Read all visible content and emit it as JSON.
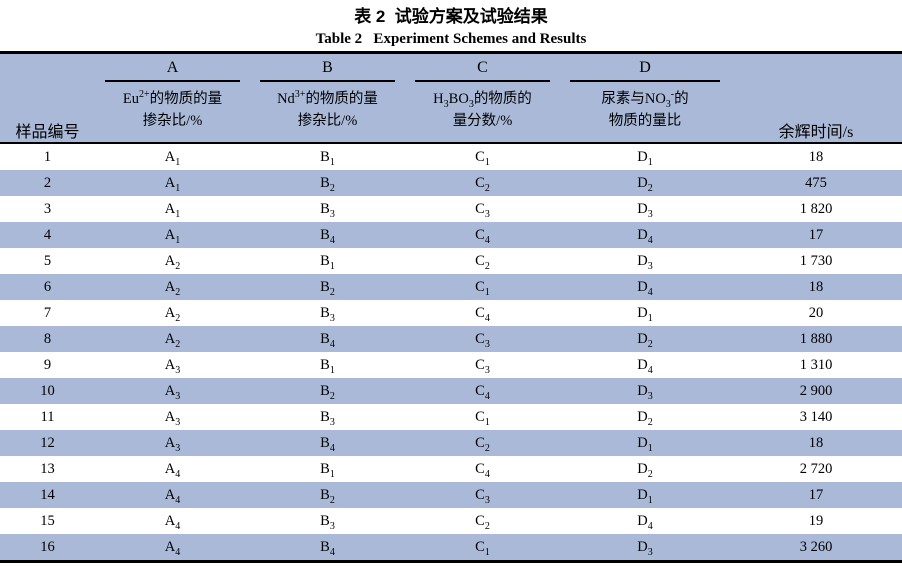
{
  "titles": {
    "cn": "表 2  试验方案及试验结果",
    "en": "Table 2   Experiment Schemes and Results"
  },
  "colors": {
    "row_highlight": "#a9b9d7",
    "rule": "#000000",
    "text": "#000000"
  },
  "table": {
    "sample_col_header": "样品编号",
    "time_col_header": "余辉时间/s",
    "factors": [
      {
        "letter": "A",
        "desc_parts": [
          {
            "t": "Eu"
          },
          {
            "sup": "2+"
          },
          {
            "t": "的物质的量"
          },
          {
            "br": true
          },
          {
            "t": "掺杂比/%"
          }
        ]
      },
      {
        "letter": "B",
        "desc_parts": [
          {
            "t": "Nd"
          },
          {
            "sup": "3+"
          },
          {
            "t": "的物质的量"
          },
          {
            "br": true
          },
          {
            "t": "掺杂比/%"
          }
        ]
      },
      {
        "letter": "C",
        "desc_parts": [
          {
            "t": "H"
          },
          {
            "sub": "3"
          },
          {
            "t": "BO"
          },
          {
            "sub": "3"
          },
          {
            "t": "的物质的"
          },
          {
            "br": true
          },
          {
            "t": "量分数/%"
          }
        ]
      },
      {
        "letter": "D",
        "desc_parts": [
          {
            "t": "尿素与NO"
          },
          {
            "sub": "3"
          },
          {
            "sup": "-"
          },
          {
            "t": "的"
          },
          {
            "br": true
          },
          {
            "t": "物质的量比"
          }
        ]
      }
    ],
    "rows": [
      [
        "1",
        "A1",
        "B1",
        "C1",
        "D1",
        "18"
      ],
      [
        "2",
        "A1",
        "B2",
        "C2",
        "D2",
        "475"
      ],
      [
        "3",
        "A1",
        "B3",
        "C3",
        "D3",
        "1 820"
      ],
      [
        "4",
        "A1",
        "B4",
        "C4",
        "D4",
        "17"
      ],
      [
        "5",
        "A2",
        "B1",
        "C2",
        "D3",
        "1 730"
      ],
      [
        "6",
        "A2",
        "B2",
        "C1",
        "D4",
        "18"
      ],
      [
        "7",
        "A2",
        "B3",
        "C4",
        "D1",
        "20"
      ],
      [
        "8",
        "A2",
        "B4",
        "C3",
        "D2",
        "1 880"
      ],
      [
        "9",
        "A3",
        "B1",
        "C3",
        "D4",
        "1 310"
      ],
      [
        "10",
        "A3",
        "B2",
        "C4",
        "D3",
        "2 900"
      ],
      [
        "11",
        "A3",
        "B3",
        "C1",
        "D2",
        "3 140"
      ],
      [
        "12",
        "A3",
        "B4",
        "C2",
        "D1",
        "18"
      ],
      [
        "13",
        "A4",
        "B1",
        "C4",
        "D2",
        "2 720"
      ],
      [
        "14",
        "A4",
        "B2",
        "C3",
        "D1",
        "17"
      ],
      [
        "15",
        "A4",
        "B3",
        "C2",
        "D4",
        "19"
      ],
      [
        "16",
        "A4",
        "B4",
        "C1",
        "D3",
        "3 260"
      ]
    ],
    "cell_names": [
      "sample-number-cell",
      "factor-a-cell",
      "factor-b-cell",
      "factor-c-cell",
      "factor-d-cell",
      "afterglow-time-cell"
    ]
  }
}
